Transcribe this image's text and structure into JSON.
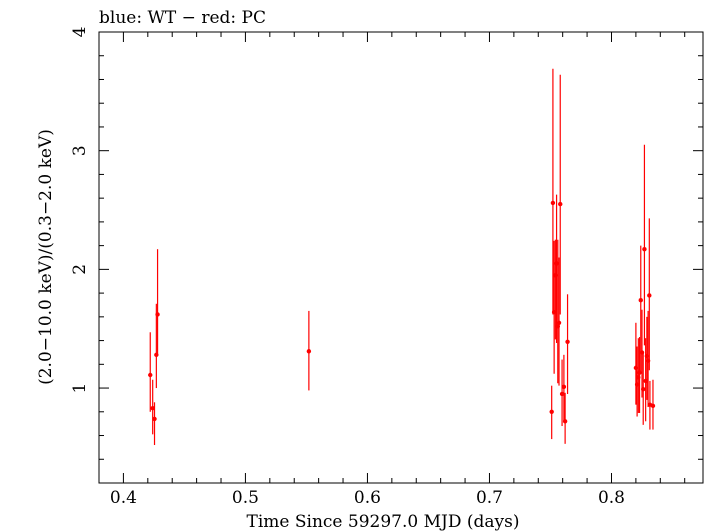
{
  "chart_data": {
    "type": "scatter",
    "title": "blue: WT − red: PC",
    "xlabel": "Time Since 59297.0 MJD (days)",
    "ylabel": "(2.0−10.0 keV)/(0.3−2.0 keV)",
    "xlim": [
      0.38,
      0.875
    ],
    "ylim": [
      0.2,
      4.0
    ],
    "x_ticks": [
      0.4,
      0.5,
      0.6,
      0.7,
      0.8
    ],
    "x_tick_labels": [
      "0.4",
      "0.5",
      "0.6",
      "0.7",
      "0.8"
    ],
    "y_ticks": [
      1,
      2,
      3,
      4
    ],
    "y_tick_labels": [
      "1",
      "2",
      "3",
      "4"
    ],
    "series": [
      {
        "name": "PC",
        "color": "#ff0000",
        "points": [
          {
            "x": 0.422,
            "y": 1.11,
            "err_low": 0.31,
            "err_high": 0.36
          },
          {
            "x": 0.424,
            "y": 0.83,
            "err_low": 0.22,
            "err_high": 0.24
          },
          {
            "x": 0.4255,
            "y": 0.74,
            "err_low": 0.22,
            "err_high": 0.14
          },
          {
            "x": 0.427,
            "y": 1.28,
            "err_low": 0.28,
            "err_high": 0.43
          },
          {
            "x": 0.428,
            "y": 1.62,
            "err_low": 0.33,
            "err_high": 0.55
          },
          {
            "x": 0.552,
            "y": 1.31,
            "err_low": 0.33,
            "err_high": 0.34
          },
          {
            "x": 0.751,
            "y": 0.8,
            "err_low": 0.23,
            "err_high": 0.22
          },
          {
            "x": 0.752,
            "y": 2.56,
            "err_low": 0.94,
            "err_high": 1.13
          },
          {
            "x": 0.753,
            "y": 1.64,
            "err_low": 0.52,
            "err_high": 0.6
          },
          {
            "x": 0.754,
            "y": 1.95,
            "err_low": 0.54,
            "err_high": 0.3
          },
          {
            "x": 0.755,
            "y": 2.05,
            "err_low": 0.67,
            "err_high": 0.58
          },
          {
            "x": 0.756,
            "y": 1.52,
            "err_low": 0.48,
            "err_high": 0.73
          },
          {
            "x": 0.757,
            "y": 1.55,
            "err_low": 0.53,
            "err_high": 0.55
          },
          {
            "x": 0.758,
            "y": 2.55,
            "err_low": 0.93,
            "err_high": 1.09
          },
          {
            "x": 0.7595,
            "y": 0.95,
            "err_low": 0.27,
            "err_high": 0.29
          },
          {
            "x": 0.761,
            "y": 1.01,
            "err_low": 0.29,
            "err_high": 0.27
          },
          {
            "x": 0.762,
            "y": 0.72,
            "err_low": 0.19,
            "err_high": 0.24
          },
          {
            "x": 0.764,
            "y": 1.39,
            "err_low": 0.44,
            "err_high": 0.4
          },
          {
            "x": 0.82,
            "y": 1.17,
            "err_low": 0.31,
            "err_high": 0.38
          },
          {
            "x": 0.821,
            "y": 1.03,
            "err_low": 0.27,
            "err_high": 0.32
          },
          {
            "x": 0.822,
            "y": 1.09,
            "err_low": 0.3,
            "err_high": 0.33
          },
          {
            "x": 0.823,
            "y": 1.13,
            "err_low": 0.34,
            "err_high": 0.3
          },
          {
            "x": 0.824,
            "y": 1.74,
            "err_low": 0.6,
            "err_high": 0.46
          },
          {
            "x": 0.825,
            "y": 1.3,
            "err_low": 0.38,
            "err_high": 0.36
          },
          {
            "x": 0.826,
            "y": 0.99,
            "err_low": 0.3,
            "err_high": 0.31
          },
          {
            "x": 0.827,
            "y": 2.17,
            "err_low": 0.81,
            "err_high": 0.88
          },
          {
            "x": 0.828,
            "y": 1.06,
            "err_low": 0.34,
            "err_high": 0.36
          },
          {
            "x": 0.829,
            "y": 1.27,
            "err_low": 0.37,
            "err_high": 0.33
          },
          {
            "x": 0.83,
            "y": 1.23,
            "err_low": 0.39,
            "err_high": 0.42
          },
          {
            "x": 0.831,
            "y": 1.78,
            "err_low": 0.63,
            "err_high": 0.65
          },
          {
            "x": 0.8315,
            "y": 0.86,
            "err_low": 0.21,
            "err_high": 0.2
          },
          {
            "x": 0.834,
            "y": 0.85,
            "err_low": 0.2,
            "err_high": 0.22
          }
        ]
      }
    ]
  }
}
